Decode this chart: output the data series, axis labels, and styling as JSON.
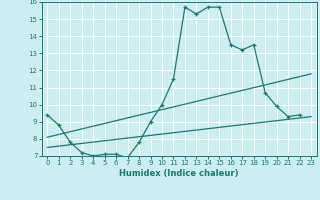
{
  "title": "",
  "xlabel": "Humidex (Indice chaleur)",
  "bg_color": "#cceef0",
  "grid_color": "#ffffff",
  "line_color": "#1a7a6e",
  "xlim": [
    -0.5,
    23.5
  ],
  "ylim": [
    7,
    16
  ],
  "xticks": [
    0,
    1,
    2,
    3,
    4,
    5,
    6,
    7,
    8,
    9,
    10,
    11,
    12,
    13,
    14,
    15,
    16,
    17,
    18,
    19,
    20,
    21,
    22,
    23
  ],
  "yticks": [
    7,
    8,
    9,
    10,
    11,
    12,
    13,
    14,
    15,
    16
  ],
  "curve_x": [
    0,
    1,
    2,
    3,
    4,
    5,
    6,
    7,
    8,
    9,
    10,
    11,
    12,
    13,
    14,
    15,
    16,
    17,
    18,
    19,
    20,
    21,
    22
  ],
  "curve_y": [
    9.4,
    8.8,
    7.8,
    7.2,
    7.0,
    7.1,
    7.1,
    6.9,
    7.8,
    9.0,
    10.0,
    11.5,
    15.7,
    15.3,
    15.7,
    15.7,
    13.5,
    13.2,
    13.5,
    10.7,
    9.9,
    9.3,
    9.4
  ],
  "trend1_x": [
    0,
    23
  ],
  "trend1_y": [
    8.1,
    11.8
  ],
  "trend2_x": [
    0,
    23
  ],
  "trend2_y": [
    7.5,
    9.3
  ],
  "lw": 0.9,
  "ms": 3.5
}
